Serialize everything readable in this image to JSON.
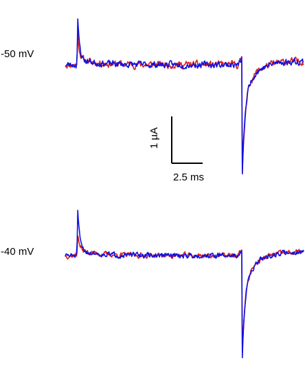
{
  "chart_data": {
    "type": "line",
    "panels": [
      {
        "label": "-50 mV",
        "baseline_uA": 0,
        "series": [
          {
            "color": "#d42020",
            "seed": 11,
            "noise": 0.06,
            "spike1_peak_uA": 0.55,
            "spike2_trough_uA": -1.95
          },
          {
            "color": "#1010e0",
            "seed": 23,
            "noise": 0.055,
            "spike1_peak_uA": 0.85,
            "spike2_trough_uA": -1.95
          }
        ]
      },
      {
        "label": "-40 mV",
        "baseline_uA": 0,
        "series": [
          {
            "color": "#d42020",
            "seed": 37,
            "noise": 0.045,
            "spike1_peak_uA": 0.35,
            "spike2_trough_uA": -1.7
          },
          {
            "color": "#1010e0",
            "seed": 51,
            "noise": 0.045,
            "spike1_peak_uA": 0.85,
            "spike2_trough_uA": -1.82
          }
        ]
      }
    ],
    "time_range_ms": [
      0,
      15.3
    ],
    "spike1_time_ms": 0.8,
    "spike2_time_ms": 11.35,
    "scale_bar": {
      "current_label": "1 µA",
      "current_uA": 1,
      "time_label": "2.5 ms",
      "time_ms": 2.5
    },
    "colors": {
      "red": "#d42020",
      "blue": "#1010e0"
    }
  }
}
